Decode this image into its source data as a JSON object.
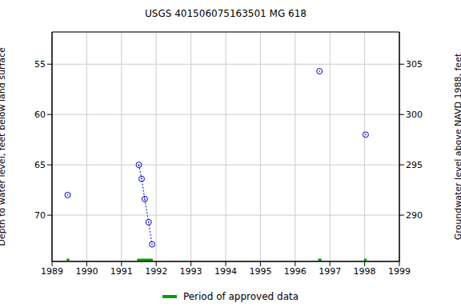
{
  "chart_data": {
    "type": "scatter",
    "title": "USGS 401506075163501 MG   618",
    "x_label": "",
    "y_label": "Depth to water level, feet below land surface",
    "y2_label": "Groundwater level above NAVD 1988, feet",
    "xlim": [
      1989,
      1999
    ],
    "xticks": [
      1989,
      1990,
      1991,
      1992,
      1993,
      1994,
      1995,
      1996,
      1997,
      1998,
      1999
    ],
    "ylim": [
      51.8,
      74.6
    ],
    "yticks": [
      55,
      60,
      65,
      70
    ],
    "y2lim": [
      285.4,
      308.2
    ],
    "y2ticks": [
      290,
      295,
      300,
      305
    ],
    "grid": true,
    "series": [
      {
        "color": "#0000cc",
        "marker": "circle",
        "line_style": "none",
        "x": [
          1989.45,
          1996.7,
          1998.03
        ],
        "values": [
          68.0,
          55.7,
          62.0
        ]
      },
      {
        "color": "#0000cc",
        "marker": "circle",
        "line_style": "dotted",
        "x": [
          1991.5,
          1991.58,
          1991.67,
          1991.78,
          1991.88
        ],
        "values": [
          65.0,
          66.4,
          68.4,
          70.7,
          72.9
        ]
      }
    ],
    "approved_data": {
      "label": "Period of approved data",
      "color": "#00a000",
      "periods": [
        [
          1989.42,
          1989.5
        ],
        [
          1991.45,
          1991.9
        ],
        [
          1996.66,
          1996.76
        ],
        [
          1997.98,
          1998.06
        ]
      ]
    }
  }
}
